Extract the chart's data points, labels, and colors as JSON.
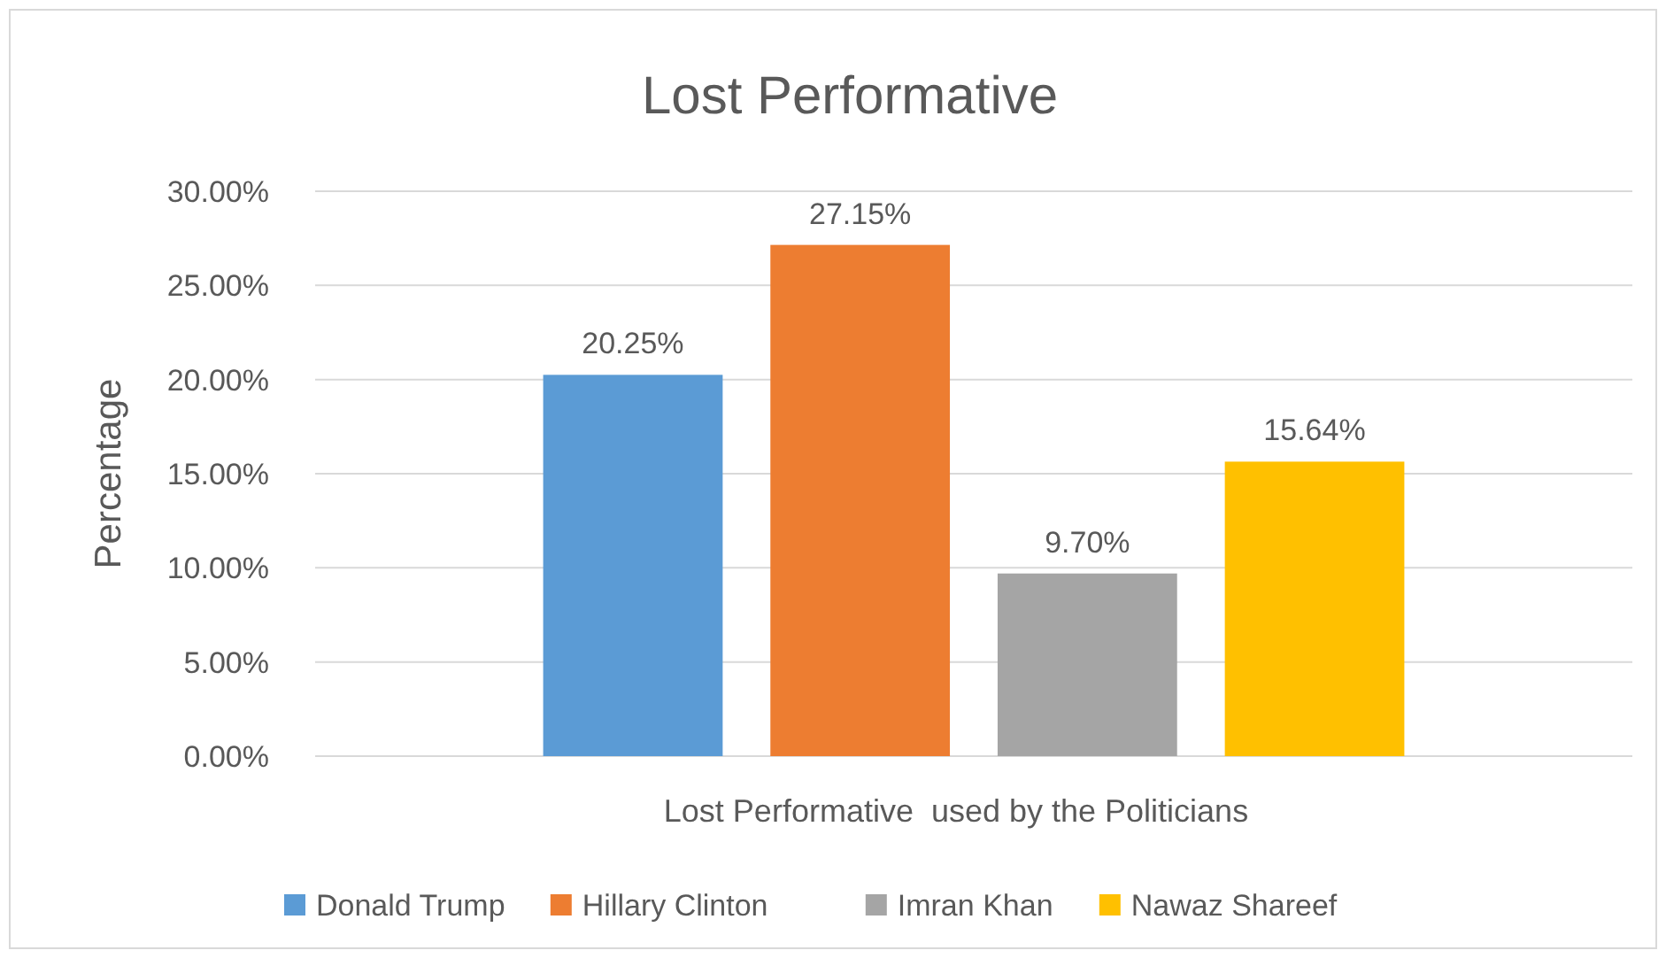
{
  "chart_data": {
    "type": "bar",
    "title": "Lost Performative",
    "xlabel": "Lost Performative  used by the Politicians",
    "ylabel": "Percentage",
    "categories": [
      null
    ],
    "series": [
      {
        "name": "Donald Trump",
        "color": "#5b9bd5",
        "values": [
          20.25
        ],
        "value_labels": [
          "20.25%"
        ]
      },
      {
        "name": "Hillary Clinton",
        "color": "#ed7d31",
        "values": [
          27.15
        ],
        "value_labels": [
          "27.15%"
        ]
      },
      {
        "name": "Imran Khan",
        "color": "#a5a5a5",
        "values": [
          9.7
        ],
        "value_labels": [
          "9.70%"
        ]
      },
      {
        "name": "Nawaz Shareef",
        "color": "#ffc000",
        "values": [
          15.64
        ],
        "value_labels": [
          "15.64%"
        ]
      }
    ],
    "ylim": [
      0,
      30
    ],
    "yticks": [
      {
        "value": 0,
        "label": "0.00%"
      },
      {
        "value": 5,
        "label": "5.00%"
      },
      {
        "value": 10,
        "label": "10.00%"
      },
      {
        "value": 15,
        "label": "15.00%"
      },
      {
        "value": 20,
        "label": "20.00%"
      },
      {
        "value": 25,
        "label": "25.00%"
      },
      {
        "value": 30,
        "label": "30.00%"
      }
    ],
    "grid": "y",
    "legend": "bottom"
  }
}
